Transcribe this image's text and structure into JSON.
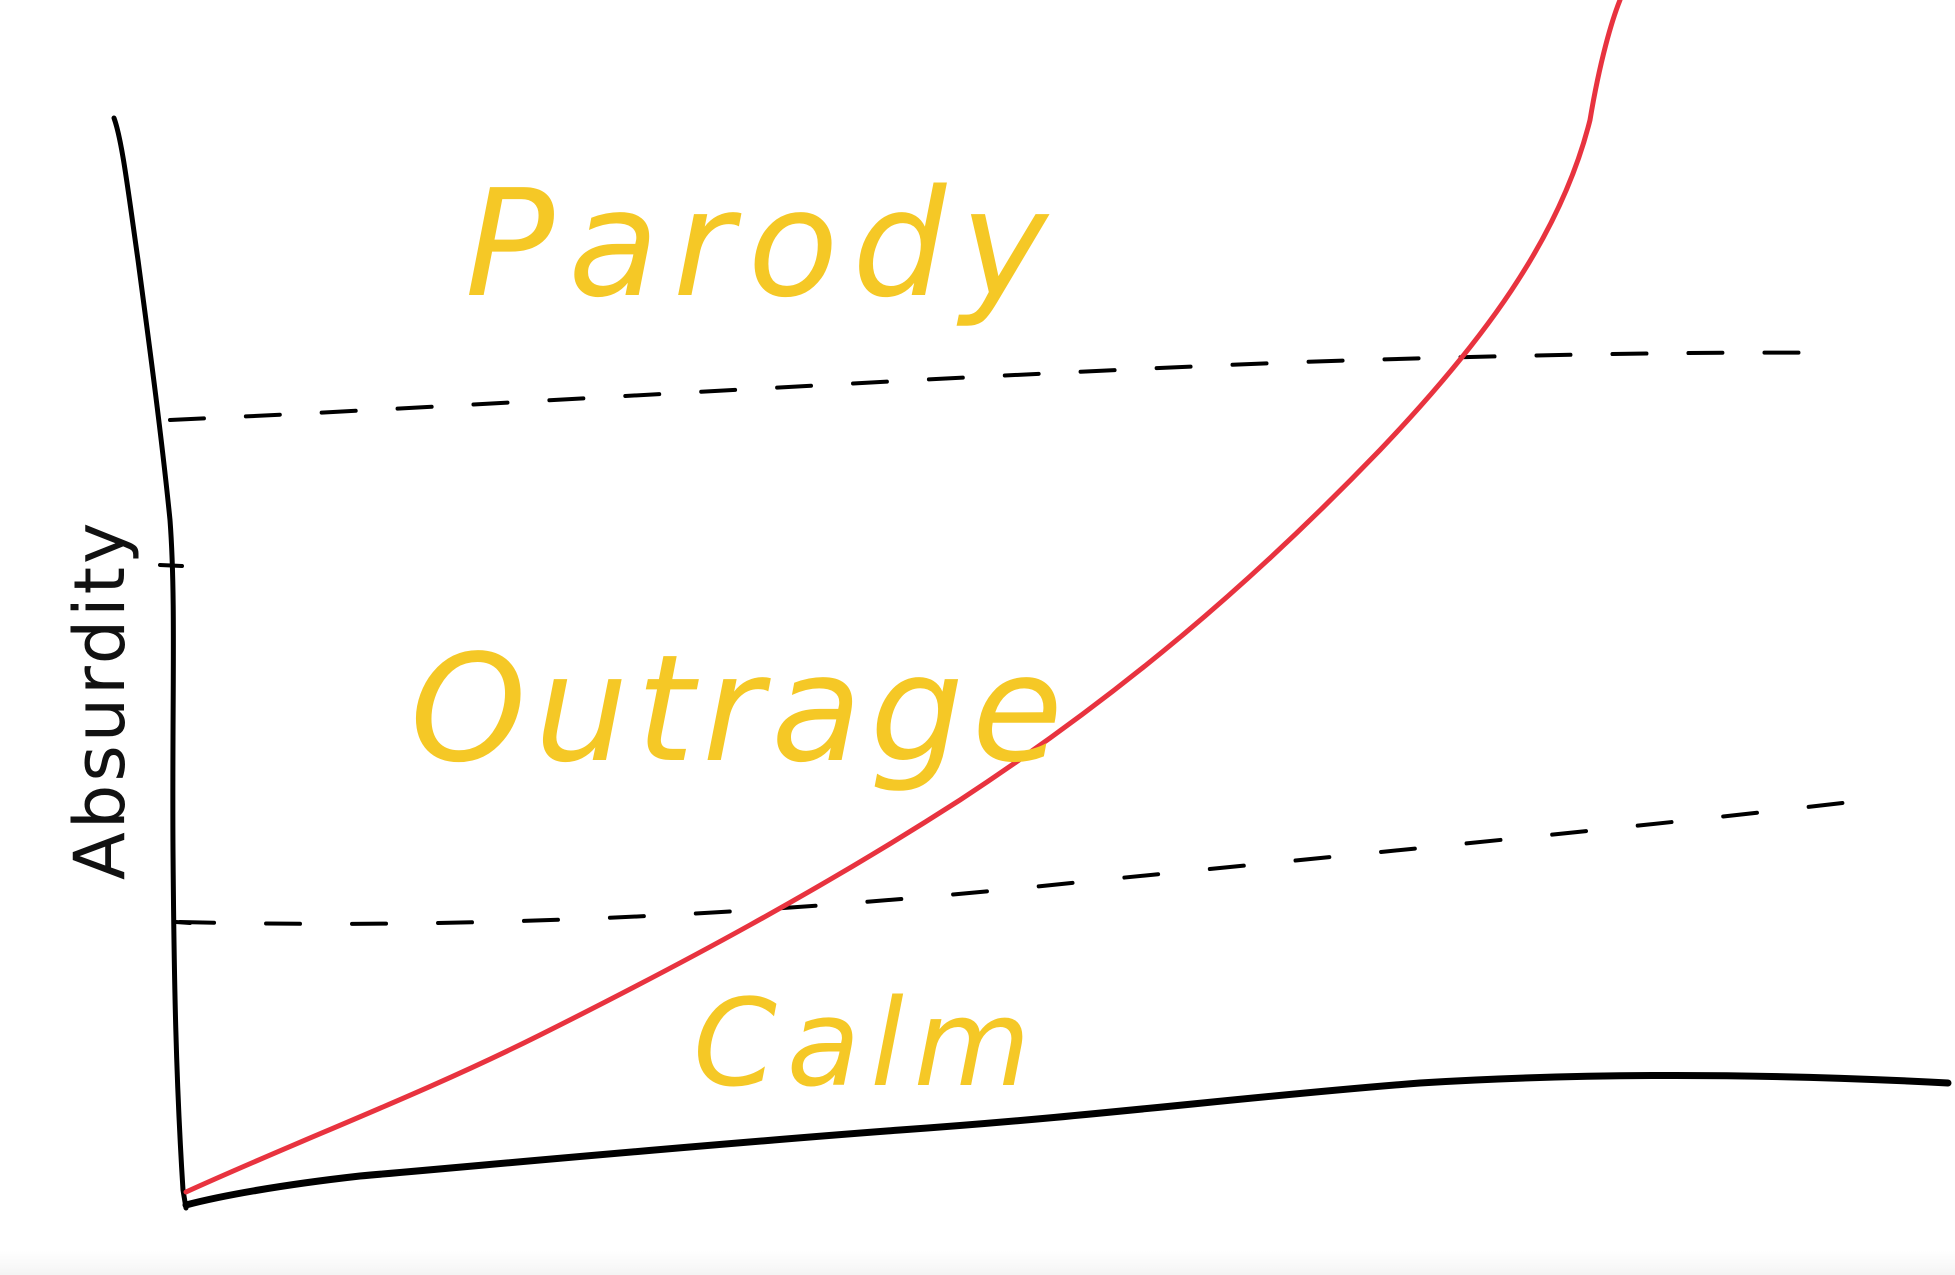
{
  "chart_data": {
    "type": "line",
    "title": "",
    "xlabel": "",
    "ylabel": "Absurdity",
    "grid": false,
    "regions": [
      {
        "label": "Calm",
        "from": 0,
        "to": 1
      },
      {
        "label": "Outrage",
        "from": 1,
        "to": 2
      },
      {
        "label": "Parody",
        "from": 2,
        "to": 3
      }
    ],
    "thresholds": [
      1,
      2
    ],
    "series": [
      {
        "color": "#e8333f",
        "x": [
          0,
          1,
          2,
          3,
          4,
          5,
          6,
          7,
          8,
          8.5,
          9
        ],
        "y": [
          0.05,
          0.25,
          0.5,
          0.78,
          1.15,
          1.6,
          2.1,
          2.75,
          3.5,
          4.1,
          4.8
        ]
      }
    ],
    "baseline": {
      "color": "#000000",
      "x": [
        0,
        2,
        4,
        6,
        8,
        10
      ],
      "y": [
        0.02,
        0.1,
        0.14,
        0.22,
        0.28,
        0.28
      ]
    },
    "colors": {
      "curve": "#e8333f",
      "labels": "#f5c826",
      "axes": "#000000"
    }
  }
}
